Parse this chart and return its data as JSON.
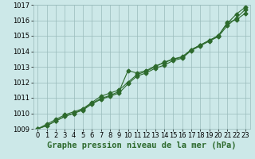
{
  "x": [
    0,
    1,
    2,
    3,
    4,
    5,
    6,
    7,
    8,
    9,
    10,
    11,
    12,
    13,
    14,
    15,
    16,
    17,
    18,
    19,
    20,
    21,
    22,
    23
  ],
  "line1": [
    1009.0,
    1009.3,
    1009.6,
    1009.9,
    1010.1,
    1010.3,
    1010.7,
    1011.1,
    1011.3,
    1011.5,
    1012.0,
    1012.5,
    1012.7,
    1013.0,
    1013.3,
    1013.5,
    1013.6,
    1014.1,
    1014.4,
    1014.7,
    1015.0,
    1015.8,
    1016.4,
    1016.85
  ],
  "line2": [
    1009.0,
    1009.2,
    1009.5,
    1009.8,
    1010.0,
    1010.2,
    1010.6,
    1010.9,
    1011.1,
    1011.3,
    1011.9,
    1012.4,
    1012.6,
    1012.9,
    1013.1,
    1013.4,
    1013.55,
    1014.05,
    1014.35,
    1014.65,
    1014.95,
    1015.65,
    1016.15,
    1016.7
  ],
  "line3": [
    1009.0,
    1009.2,
    1009.5,
    1009.8,
    1010.0,
    1010.25,
    1010.65,
    1010.95,
    1011.15,
    1011.4,
    1012.75,
    1012.6,
    1012.75,
    1013.05,
    1013.25,
    1013.5,
    1013.65,
    1014.1,
    1014.4,
    1014.7,
    1015.0,
    1015.85,
    1016.05,
    1016.45
  ],
  "ylim": [
    1009,
    1017
  ],
  "xlim_min": -0.5,
  "xlim_max": 23.5,
  "yticks": [
    1009,
    1010,
    1011,
    1012,
    1013,
    1014,
    1015,
    1016,
    1017
  ],
  "xticks": [
    0,
    1,
    2,
    3,
    4,
    5,
    6,
    7,
    8,
    9,
    10,
    11,
    12,
    13,
    14,
    15,
    16,
    17,
    18,
    19,
    20,
    21,
    22,
    23
  ],
  "xlabel": "Graphe pression niveau de la mer (hPa)",
  "line_color": "#2d6a2d",
  "bg_color": "#cce8e8",
  "grid_color": "#99bbbb",
  "marker": "D",
  "markersize": 2.5,
  "linewidth": 0.8,
  "xlabel_fontsize": 7.5,
  "tick_fontsize": 6,
  "fig_bg": "#cce8e8"
}
